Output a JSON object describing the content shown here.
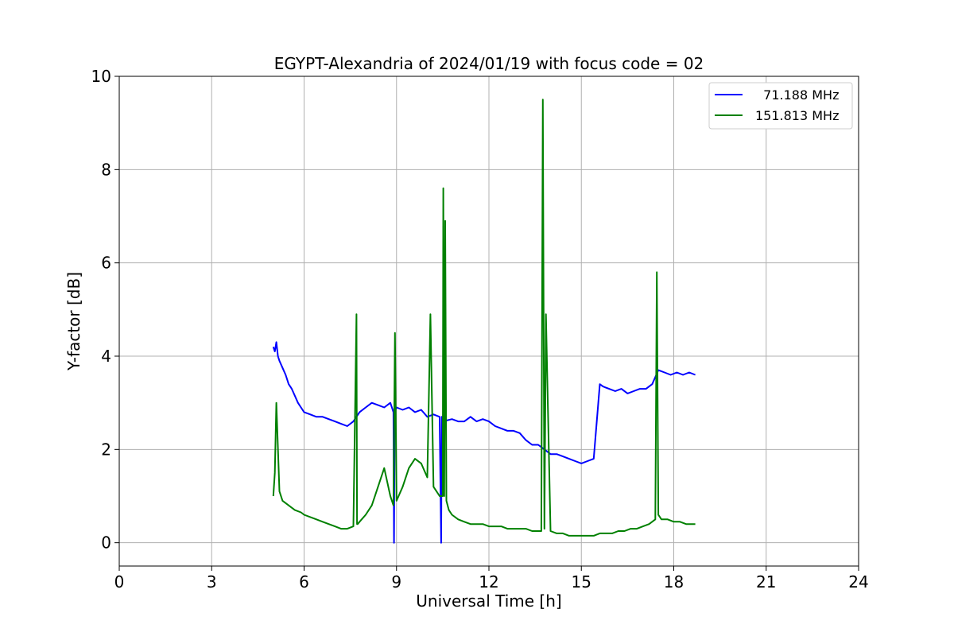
{
  "chart_data": {
    "type": "line",
    "title": "EGYPT-Alexandria of 2024/01/19 with focus code = 02",
    "xlabel": "Universal Time [h]",
    "ylabel": "Y-factor [dB]",
    "xlim": [
      0,
      24
    ],
    "ylim": [
      -0.5,
      10
    ],
    "xticks": [
      0,
      3,
      6,
      9,
      12,
      15,
      18,
      21,
      24
    ],
    "yticks": [
      0,
      2,
      4,
      6,
      8,
      10
    ],
    "grid": true,
    "legend_position": "top-right",
    "series": [
      {
        "name": "  71.188 MHz",
        "color": "#0000ff",
        "x": [
          5.0,
          5.05,
          5.1,
          5.15,
          5.2,
          5.3,
          5.4,
          5.5,
          5.6,
          5.7,
          5.8,
          5.9,
          6.0,
          6.2,
          6.4,
          6.6,
          6.8,
          7.0,
          7.2,
          7.4,
          7.6,
          7.8,
          8.0,
          8.2,
          8.4,
          8.6,
          8.8,
          8.9,
          8.92,
          8.94,
          9.0,
          9.2,
          9.4,
          9.6,
          9.8,
          10.0,
          10.2,
          10.4,
          10.45,
          10.47,
          10.5,
          10.8,
          11.0,
          11.2,
          11.4,
          11.6,
          11.8,
          12.0,
          12.2,
          12.4,
          12.6,
          12.8,
          13.0,
          13.2,
          13.4,
          13.6,
          13.8,
          14.0,
          14.2,
          14.4,
          14.6,
          14.8,
          15.0,
          15.2,
          15.4,
          15.6,
          15.7,
          15.9,
          16.1,
          16.3,
          16.5,
          16.7,
          16.9,
          17.1,
          17.3,
          17.5,
          17.7,
          17.9,
          18.1,
          18.3,
          18.5,
          18.7
        ],
        "y": [
          4.2,
          4.1,
          4.3,
          4.0,
          3.9,
          3.75,
          3.6,
          3.4,
          3.3,
          3.15,
          3.0,
          2.9,
          2.8,
          2.75,
          2.7,
          2.7,
          2.65,
          2.6,
          2.55,
          2.5,
          2.6,
          2.8,
          2.9,
          3.0,
          2.95,
          2.9,
          3.0,
          2.8,
          0.0,
          2.8,
          2.9,
          2.85,
          2.9,
          2.8,
          2.85,
          2.7,
          2.75,
          2.7,
          0.0,
          2.7,
          2.6,
          2.65,
          2.6,
          2.6,
          2.7,
          2.6,
          2.65,
          2.6,
          2.5,
          2.45,
          2.4,
          2.4,
          2.35,
          2.2,
          2.1,
          2.1,
          2.0,
          1.9,
          1.9,
          1.85,
          1.8,
          1.75,
          1.7,
          1.75,
          1.8,
          3.4,
          3.35,
          3.3,
          3.25,
          3.3,
          3.2,
          3.25,
          3.3,
          3.3,
          3.4,
          3.7,
          3.65,
          3.6,
          3.65,
          3.6,
          3.65,
          3.6
        ]
      },
      {
        "name": "151.813 MHz",
        "color": "#008000",
        "x": [
          5.0,
          5.05,
          5.1,
          5.2,
          5.3,
          5.5,
          5.7,
          5.9,
          6.0,
          6.2,
          6.4,
          6.6,
          6.8,
          7.0,
          7.2,
          7.4,
          7.6,
          7.7,
          7.72,
          7.74,
          7.8,
          8.0,
          8.2,
          8.4,
          8.6,
          8.8,
          8.9,
          8.95,
          9.0,
          9.2,
          9.4,
          9.6,
          9.8,
          10.0,
          10.1,
          10.2,
          10.3,
          10.4,
          10.5,
          10.52,
          10.55,
          10.58,
          10.62,
          10.7,
          10.8,
          11.0,
          11.2,
          11.4,
          11.6,
          11.8,
          12.0,
          12.2,
          12.4,
          12.6,
          12.8,
          13.0,
          13.2,
          13.4,
          13.6,
          13.7,
          13.75,
          13.8,
          13.85,
          14.0,
          14.2,
          14.4,
          14.6,
          14.8,
          15.0,
          15.2,
          15.4,
          15.6,
          15.8,
          16.0,
          16.2,
          16.4,
          16.6,
          16.8,
          17.0,
          17.2,
          17.4,
          17.45,
          17.5,
          17.55,
          17.6,
          17.8,
          18.0,
          18.2,
          18.4,
          18.6,
          18.7
        ],
        "y": [
          1.0,
          1.5,
          3.0,
          1.1,
          0.9,
          0.8,
          0.7,
          0.65,
          0.6,
          0.55,
          0.5,
          0.45,
          0.4,
          0.35,
          0.3,
          0.3,
          0.35,
          4.9,
          0.4,
          0.4,
          0.45,
          0.6,
          0.8,
          1.2,
          1.6,
          1.0,
          0.8,
          4.5,
          0.9,
          1.2,
          1.6,
          1.8,
          1.7,
          1.4,
          4.9,
          1.2,
          1.1,
          1.0,
          1.0,
          7.6,
          1.0,
          6.9,
          0.9,
          0.7,
          0.6,
          0.5,
          0.45,
          0.4,
          0.4,
          0.4,
          0.35,
          0.35,
          0.35,
          0.3,
          0.3,
          0.3,
          0.3,
          0.25,
          0.25,
          0.25,
          9.5,
          0.3,
          4.9,
          0.25,
          0.2,
          0.2,
          0.15,
          0.15,
          0.15,
          0.15,
          0.15,
          0.2,
          0.2,
          0.2,
          0.25,
          0.25,
          0.3,
          0.3,
          0.35,
          0.4,
          0.5,
          5.8,
          0.6,
          0.55,
          0.5,
          0.5,
          0.45,
          0.45,
          0.4,
          0.4,
          0.4
        ]
      }
    ]
  }
}
